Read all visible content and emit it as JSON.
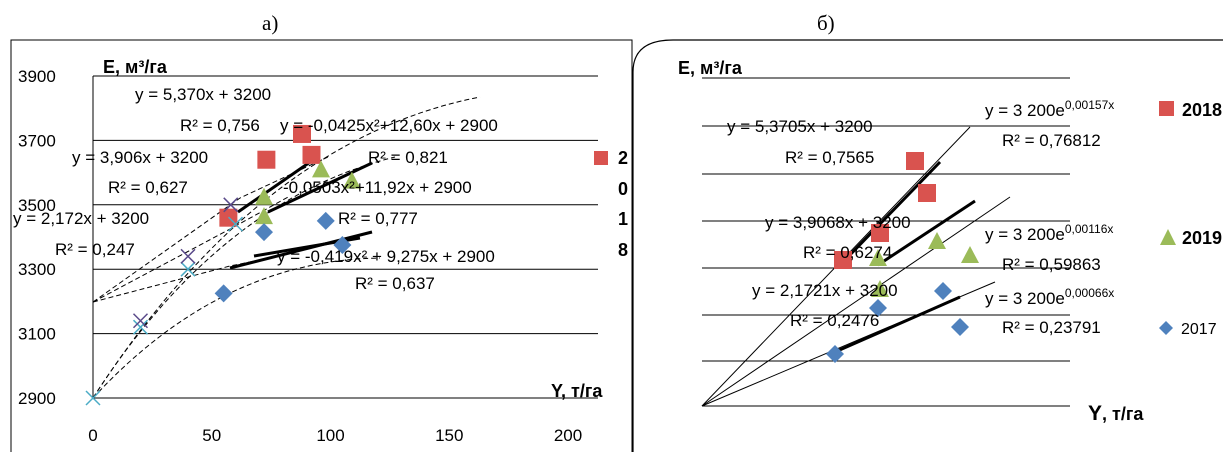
{
  "panel_a": {
    "label": "а)",
    "chart_data": {
      "type": "scatter",
      "ylabel": "E, м³/га",
      "xlabel": "Y, т/га",
      "xlim": [
        0,
        200
      ],
      "ylim": [
        2900,
        3900
      ],
      "x_ticks": [
        "0",
        "50",
        "100",
        "150",
        "200"
      ],
      "y_ticks": [
        "2900",
        "3100",
        "3300",
        "3500",
        "3700",
        "3900"
      ],
      "grid": "horizontal",
      "series": [
        {
          "name": "2018",
          "marker": "square",
          "color": "#d9534f",
          "points": [
            [
              57,
              3460
            ],
            [
              73,
              3640
            ],
            [
              88,
              3720
            ],
            [
              92,
              3655
            ]
          ]
        },
        {
          "name": "2019",
          "marker": "triangle",
          "color": "#9bbb59",
          "points": [
            [
              72,
              3525
            ],
            [
              72,
              3465
            ],
            [
              96,
              3610
            ],
            [
              109,
              3575
            ]
          ]
        },
        {
          "name": "2017",
          "marker": "diamond",
          "color": "#4f81bd",
          "points": [
            [
              55,
              3225
            ],
            [
              72,
              3415
            ],
            [
              98,
              3450
            ],
            [
              105,
              3375
            ]
          ]
        },
        {
          "name": "",
          "marker": "x",
          "color": "#4bacc6",
          "points": [
            [
              0,
              2900
            ],
            [
              20,
              3120
            ],
            [
              40,
              3300
            ],
            [
              60,
              3440
            ]
          ]
        },
        {
          "name": "",
          "marker": "x-dark",
          "color": "#5a4a8a",
          "points": [
            [
              20,
              3140
            ],
            [
              40,
              3340
            ],
            [
              58,
              3500
            ]
          ]
        }
      ],
      "equations": [
        {
          "text": "y = 5,370x + 3200"
        },
        {
          "text": "R² = 0,756"
        },
        {
          "text": "y = -0,0425x²+12,60x + 2900"
        },
        {
          "text": "y = 3,906x + 3200"
        },
        {
          "text": "R² = 0,821"
        },
        {
          "text": "R² = 0,627"
        },
        {
          "text": "-0,0503x²+11,92x + 2900"
        },
        {
          "text": "y = 2,172x + 3200"
        },
        {
          "text": "R² = 0,777"
        },
        {
          "text": "R² = 0,247"
        },
        {
          "text": "y = -0,419x² + 9,275x + 2900"
        },
        {
          "text": "R² = 0,637"
        }
      ],
      "legend_vertical": [
        "2",
        "0",
        "1",
        "8"
      ]
    }
  },
  "panel_b": {
    "label": "б)",
    "chart_data": {
      "type": "scatter",
      "ylabel": "E, м³/га",
      "xlabel_y": "Y",
      "xlabel_rest": ", т/га",
      "series": [
        {
          "name": "2018",
          "marker": "square",
          "color": "#d9534f",
          "equation": "y = 3 200e",
          "exponent": "0,00157x",
          "r2": "R² = 0,76812"
        },
        {
          "name": "2019",
          "marker": "triangle",
          "color": "#9bbb59",
          "equation": "y = 3 200e",
          "exponent": "0,00116x",
          "r2": "R² = 0,59863"
        },
        {
          "name": "2017",
          "marker": "diamond",
          "color": "#4f81bd",
          "equation": "y = 3 200e",
          "exponent": "0,00066x",
          "r2": "R² = 0,23791"
        }
      ],
      "linear_equations": [
        {
          "text": "y = 5,3705x + 3200"
        },
        {
          "text": "R² = 0,7565"
        },
        {
          "text": "y = 3,9068x + 3200"
        },
        {
          "text": "R² = 0,6274"
        },
        {
          "text": "y = 2,1721x + 3200"
        },
        {
          "text": "R² = 0,2476"
        }
      ]
    }
  }
}
